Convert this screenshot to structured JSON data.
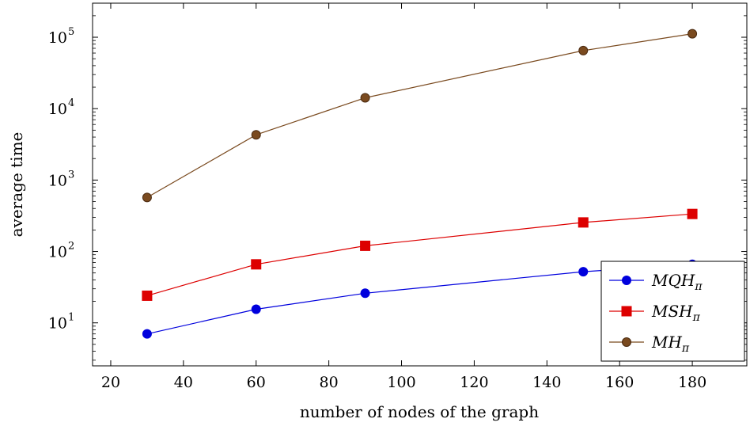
{
  "chart_data": {
    "type": "line",
    "title": "",
    "xlabel": "number of nodes of the graph",
    "ylabel": "average time",
    "x": [
      30,
      60,
      90,
      150,
      180
    ],
    "xlim": [
      15,
      195
    ],
    "ylim": [
      2.5,
      300000
    ],
    "yscale": "log",
    "xticks": [
      20,
      40,
      60,
      80,
      100,
      120,
      140,
      160,
      180
    ],
    "yticks": [
      {
        "value": 10,
        "base": "10",
        "exp": "1"
      },
      {
        "value": 100,
        "base": "10",
        "exp": "2"
      },
      {
        "value": 1000,
        "base": "10",
        "exp": "3"
      },
      {
        "value": 10000,
        "base": "10",
        "exp": "4"
      },
      {
        "value": 100000,
        "base": "10",
        "exp": "5"
      }
    ],
    "grid": false,
    "legend_position": "bottom-right",
    "series": [
      {
        "name_main": "MQH",
        "name_sub": "π",
        "color": "#0000dd",
        "marker": "circle",
        "values": [
          7,
          15.5,
          26,
          52,
          66
        ]
      },
      {
        "name_main": "MSH",
        "name_sub": "π",
        "color": "#dd0000",
        "marker": "square",
        "values": [
          24,
          66,
          120,
          255,
          335
        ]
      },
      {
        "name_main": "MH",
        "name_sub": "π",
        "color": "#7a4a1f",
        "marker": "circle",
        "values": [
          570,
          4300,
          14200,
          65000,
          112000
        ]
      }
    ]
  }
}
